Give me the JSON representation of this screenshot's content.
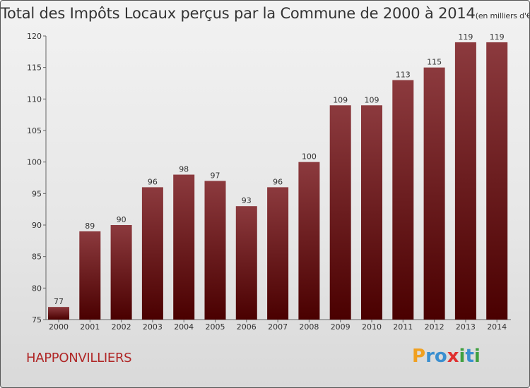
{
  "title": "Total des Impôts Locaux perçus par la Commune de 2000 à 2014",
  "unit": "(en milliers d'€)",
  "commune": "HAPPONVILLIERS",
  "logo": {
    "p": "P",
    "r": "r",
    "o": "o",
    "x": "x",
    "i1": "i",
    "t": "t",
    "i2": "i"
  },
  "colors": {
    "bar_top": "#8c3a3e",
    "bar_bottom": "#4a0000",
    "accent": "#b02727"
  },
  "chart_data": {
    "type": "bar",
    "title": "Total des Impôts Locaux perçus par la Commune de 2000 à 2014",
    "ylabel": "en milliers d'€",
    "xlabel": "",
    "categories": [
      "2000",
      "2001",
      "2002",
      "2003",
      "2004",
      "2005",
      "2006",
      "2007",
      "2008",
      "2009",
      "2010",
      "2011",
      "2012",
      "2013",
      "2014"
    ],
    "values": [
      77,
      89,
      90,
      96,
      98,
      97,
      93,
      96,
      100,
      109,
      109,
      113,
      115,
      119,
      119
    ],
    "ylim": [
      75,
      120
    ],
    "yticks": [
      75,
      80,
      85,
      90,
      95,
      100,
      105,
      110,
      115,
      120
    ],
    "grid": false
  }
}
